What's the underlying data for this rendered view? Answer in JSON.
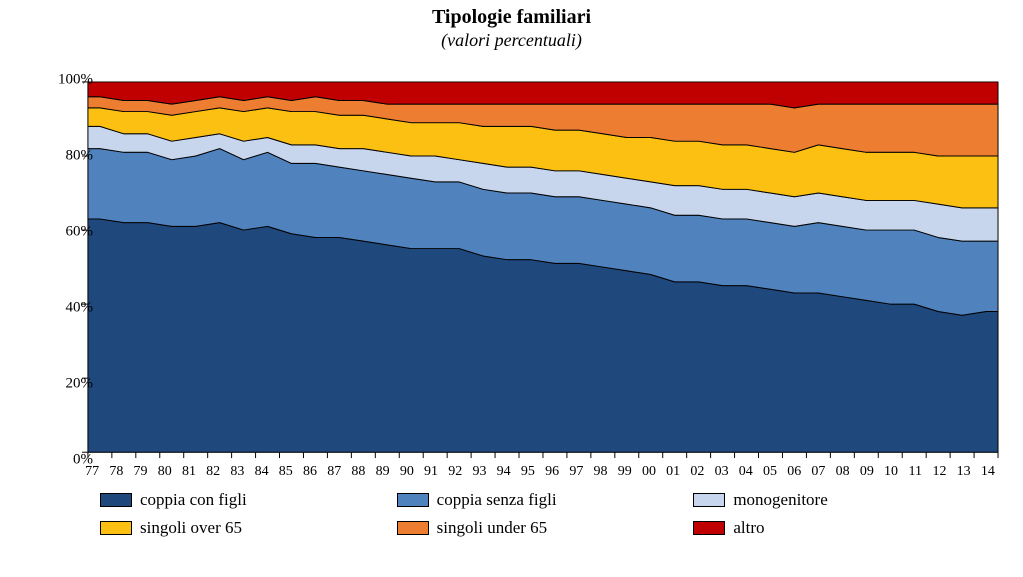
{
  "chart": {
    "type": "stacked-area",
    "title": "Tipologie familiari",
    "subtitle": "(valori percentuali)",
    "title_fontsize": 20,
    "subtitle_fontsize": 18,
    "background_color": "#ffffff",
    "ylim": [
      0,
      100
    ],
    "ytick_step": 20,
    "ytick_suffix": "%",
    "categories": [
      "77",
      "78",
      "79",
      "80",
      "81",
      "82",
      "83",
      "84",
      "85",
      "86",
      "87",
      "88",
      "89",
      "90",
      "91",
      "92",
      "93",
      "94",
      "95",
      "96",
      "97",
      "98",
      "99",
      "00",
      "01",
      "02",
      "03",
      "04",
      "05",
      "06",
      "07",
      "08",
      "09",
      "10",
      "11",
      "12",
      "13",
      "14"
    ],
    "series": [
      {
        "key": "coppia_con_figli",
        "label": "coppia con figli",
        "color": "#1f497d",
        "values": [
          63,
          62,
          62,
          61,
          61,
          62,
          60,
          61,
          59,
          58,
          58,
          57,
          56,
          55,
          55,
          55,
          53,
          52,
          52,
          51,
          51,
          50,
          49,
          48,
          46,
          46,
          45,
          45,
          44,
          43,
          43,
          42,
          41,
          40,
          40,
          38,
          37,
          38
        ]
      },
      {
        "key": "coppia_senza_figli",
        "label": "coppia senza figli",
        "color": "#5082be",
        "values": [
          19,
          19,
          19,
          18,
          19,
          20,
          19,
          20,
          19,
          20,
          19,
          19,
          19,
          19,
          18,
          18,
          18,
          18,
          18,
          18,
          18,
          18,
          18,
          18,
          18,
          18,
          18,
          18,
          18,
          18,
          19,
          19,
          19,
          20,
          20,
          20,
          20,
          19
        ]
      },
      {
        "key": "monogenitore",
        "label": "monogenitore",
        "color": "#c7d6ec",
        "values": [
          6,
          5,
          5,
          5,
          5,
          4,
          5,
          4,
          5,
          5,
          5,
          6,
          6,
          6,
          7,
          6,
          7,
          7,
          7,
          7,
          7,
          7,
          7,
          7,
          8,
          8,
          8,
          8,
          8,
          8,
          8,
          8,
          8,
          8,
          8,
          9,
          9,
          9
        ]
      },
      {
        "key": "singoli_over_65",
        "label": "singoli over 65",
        "color": "#fcc013",
        "values": [
          5,
          6,
          6,
          7,
          7,
          7,
          8,
          8,
          9,
          9,
          9,
          9,
          9,
          9,
          9,
          10,
          10,
          11,
          11,
          11,
          11,
          11,
          11,
          12,
          12,
          12,
          12,
          12,
          12,
          12,
          13,
          13,
          13,
          13,
          13,
          13,
          14,
          14
        ]
      },
      {
        "key": "singoli_under_65",
        "label": "singoli under 65",
        "color": "#ed7d31",
        "values": [
          3,
          3,
          3,
          3,
          3,
          3,
          3,
          3,
          3,
          4,
          4,
          4,
          4,
          5,
          5,
          5,
          6,
          6,
          6,
          7,
          7,
          8,
          9,
          9,
          10,
          10,
          11,
          11,
          12,
          12,
          11,
          12,
          13,
          13,
          13,
          14,
          14,
          14
        ]
      },
      {
        "key": "altro",
        "label": "altro",
        "color": "#c00000",
        "values": [
          4,
          5,
          5,
          6,
          5,
          4,
          5,
          4,
          5,
          4,
          5,
          5,
          6,
          6,
          6,
          6,
          6,
          6,
          6,
          6,
          6,
          6,
          6,
          6,
          6,
          6,
          6,
          6,
          6,
          7,
          6,
          6,
          6,
          6,
          6,
          6,
          6,
          6
        ]
      }
    ],
    "legend_columns": 3,
    "legend_fontsize": 17,
    "axis_fontsize": 15,
    "xaxis_fontsize": 14,
    "stroke_color": "#000000",
    "stroke_width": 1
  }
}
